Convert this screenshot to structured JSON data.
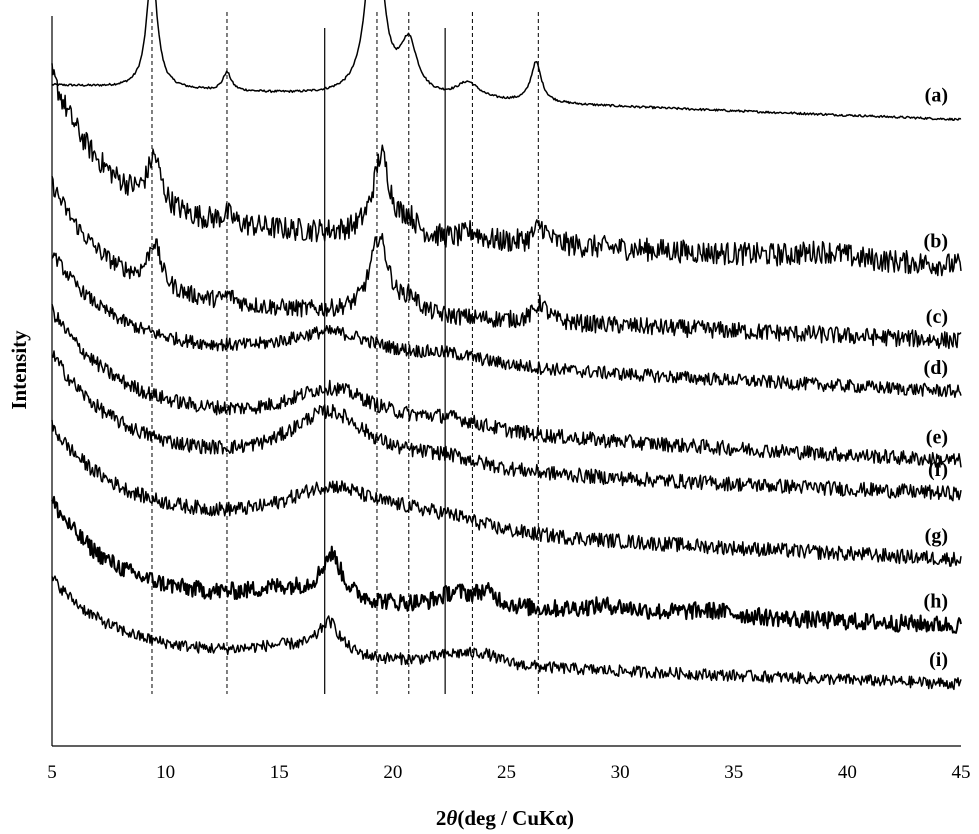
{
  "chart_data": {
    "type": "line",
    "title": "",
    "xlabel": "2θ (deg / CuKα)",
    "xlabel_parts": {
      "prefix": "2",
      "symbol": "θ",
      "suffix": "(deg / CuKα)"
    },
    "ylabel": "Intensity",
    "xlim": [
      5,
      45
    ],
    "x_ticks": [
      "5",
      "10",
      "15",
      "20",
      "25",
      "30",
      "35",
      "40",
      "45"
    ],
    "y_ticks_shown": false,
    "grid": false,
    "stacked_offset_traces": true,
    "line_color": "#000000",
    "reference_lines": {
      "dashed": [
        9.4,
        12.7,
        19.3,
        20.7,
        23.5,
        26.4
      ],
      "solid": [
        17.0,
        22.3
      ]
    },
    "series": [
      {
        "name": "(a)",
        "baseline": 0.905,
        "end": 0.858,
        "noise": 0.0015,
        "decay": {
          "amp": 0,
          "tau": 2
        },
        "peaks": [
          {
            "x": 9.4,
            "h": 0.165,
            "w": 0.28
          },
          {
            "x": 12.7,
            "h": 0.025,
            "w": 0.22
          },
          {
            "x": 19.2,
            "h": 0.285,
            "w": 0.38
          },
          {
            "x": 20.7,
            "h": 0.07,
            "w": 0.45
          },
          {
            "x": 23.3,
            "h": 0.022,
            "w": 0.6
          },
          {
            "x": 26.3,
            "h": 0.055,
            "w": 0.28
          }
        ]
      },
      {
        "name": "(b)",
        "baseline": 0.72,
        "end": 0.658,
        "noise": 0.016,
        "decay": {
          "amp": 0.2,
          "tau": 2.4
        },
        "peaks": [
          {
            "x": 9.5,
            "h": 0.065,
            "w": 0.35
          },
          {
            "x": 12.7,
            "h": 0.012,
            "w": 0.3
          },
          {
            "x": 19.5,
            "h": 0.11,
            "w": 0.45
          },
          {
            "x": 20.7,
            "h": 0.02,
            "w": 0.4
          },
          {
            "x": 23.5,
            "h": 0.012,
            "w": 0.4
          },
          {
            "x": 26.5,
            "h": 0.025,
            "w": 0.35
          },
          {
            "x": 39.0,
            "h": 0.01,
            "w": 1.2
          }
        ]
      },
      {
        "name": "(c)",
        "baseline": 0.61,
        "end": 0.555,
        "noise": 0.012,
        "decay": {
          "amp": 0.16,
          "tau": 2.5
        },
        "peaks": [
          {
            "x": 9.5,
            "h": 0.06,
            "w": 0.35
          },
          {
            "x": 12.8,
            "h": 0.01,
            "w": 0.3
          },
          {
            "x": 19.4,
            "h": 0.105,
            "w": 0.5
          },
          {
            "x": 20.8,
            "h": 0.02,
            "w": 0.4
          },
          {
            "x": 26.5,
            "h": 0.025,
            "w": 0.35
          }
        ]
      },
      {
        "name": "(d)",
        "baseline": 0.545,
        "end": 0.485,
        "noise": 0.009,
        "decay": {
          "amp": 0.13,
          "tau": 2.6
        },
        "peaks": [
          {
            "x": 17.3,
            "h": 0.038,
            "w": 2.6
          },
          {
            "x": 22.5,
            "h": 0.012,
            "w": 2.0
          }
        ]
      },
      {
        "name": "(e)",
        "baseline": 0.455,
        "end": 0.39,
        "noise": 0.01,
        "decay": {
          "amp": 0.14,
          "tau": 2.8
        },
        "peaks": [
          {
            "x": 17.3,
            "h": 0.052,
            "w": 2.4
          },
          {
            "x": 22.5,
            "h": 0.015,
            "w": 2.0
          }
        ]
      },
      {
        "name": "(f)",
        "baseline": 0.395,
        "end": 0.345,
        "noise": 0.01,
        "decay": {
          "amp": 0.14,
          "tau": 2.8
        },
        "peaks": [
          {
            "x": 17.2,
            "h": 0.075,
            "w": 2.2
          },
          {
            "x": 22.3,
            "h": 0.015,
            "w": 2.0
          }
        ]
      },
      {
        "name": "(g)",
        "baseline": 0.315,
        "end": 0.255,
        "noise": 0.01,
        "decay": {
          "amp": 0.12,
          "tau": 2.8
        },
        "peaks": [
          {
            "x": 17.3,
            "h": 0.055,
            "w": 2.5
          },
          {
            "x": 20.5,
            "h": 0.01,
            "w": 1.5
          },
          {
            "x": 22.5,
            "h": 0.015,
            "w": 1.8
          }
        ]
      },
      {
        "name": "(h)",
        "baseline": 0.205,
        "end": 0.165,
        "noise": 0.012,
        "decay": {
          "amp": 0.13,
          "tau": 2.6
        },
        "peaks": [
          {
            "x": 15.2,
            "h": 0.018,
            "w": 2.0
          },
          {
            "x": 17.3,
            "h": 0.06,
            "w": 0.55
          },
          {
            "x": 22.7,
            "h": 0.018,
            "w": 0.8
          },
          {
            "x": 24.1,
            "h": 0.02,
            "w": 0.7
          },
          {
            "x": 29.5,
            "h": 0.01,
            "w": 1.5
          },
          {
            "x": 34.0,
            "h": 0.008,
            "w": 1.5
          }
        ]
      },
      {
        "name": "(i)",
        "baseline": 0.13,
        "end": 0.085,
        "noise": 0.008,
        "decay": {
          "amp": 0.1,
          "tau": 2.6
        },
        "peaks": [
          {
            "x": 15.2,
            "h": 0.015,
            "w": 2.0
          },
          {
            "x": 17.2,
            "h": 0.045,
            "w": 0.6
          },
          {
            "x": 22.7,
            "h": 0.012,
            "w": 1.2
          },
          {
            "x": 24.0,
            "h": 0.012,
            "w": 0.8
          }
        ]
      }
    ]
  }
}
